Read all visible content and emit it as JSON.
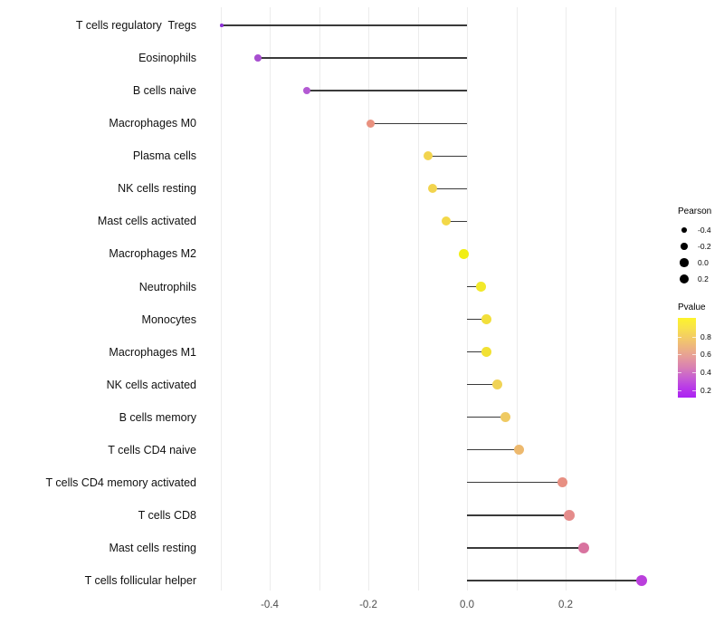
{
  "chart_data": {
    "type": "lollipop",
    "orientation": "horizontal",
    "title": "",
    "xlabel": "",
    "ylabel": "",
    "categories": [
      "T cells regulatory  Tregs",
      "Eosinophils",
      "B cells naive",
      "Macrophages M0",
      "Plasma cells",
      "NK cells resting",
      "Mast cells activated",
      "Macrophages M2",
      "Neutrophils",
      "Monocytes",
      "Macrophages M1",
      "NK cells activated",
      "B cells memory",
      "T cells CD4 naive",
      "T cells CD4 memory activated",
      "T cells CD8",
      "Mast cells resting",
      "T cells follicular helper"
    ],
    "series": [
      {
        "name": "Pearson",
        "values": [
          -0.497,
          -0.424,
          -0.325,
          -0.196,
          -0.079,
          -0.07,
          -0.042,
          -0.006,
          0.028,
          0.039,
          0.039,
          0.061,
          0.077,
          0.105,
          0.193,
          0.207,
          0.237,
          0.354
        ]
      }
    ],
    "point_colors": [
      "#8d2fd6",
      "#a84fd0",
      "#b35ad3",
      "#e9917f",
      "#f2d44e",
      "#f2d44e",
      "#f3d848",
      "#f1ee15",
      "#f2e92a",
      "#f2df3a",
      "#f2e133",
      "#f0d356",
      "#efca62",
      "#edb96e",
      "#e78f82",
      "#e58c8b",
      "#d8739f",
      "#ba3fdc"
    ],
    "point_diameters": [
      3.5,
      7.7,
      8.7,
      9.3,
      10,
      10,
      10.3,
      10.7,
      10.7,
      10.7,
      10.7,
      11,
      11,
      11.3,
      11.3,
      11.7,
      12,
      12.7
    ],
    "baseline": 0,
    "xlim": [
      -0.542,
      0.397
    ],
    "x_ticks": [
      {
        "value": -0.4,
        "label": "-0.4"
      },
      {
        "value": -0.2,
        "label": "-0.2"
      },
      {
        "value": 0.0,
        "label": "0.0"
      },
      {
        "value": 0.2,
        "label": "0.2"
      }
    ],
    "gridline_values": [
      -0.5,
      -0.4,
      -0.3,
      -0.2,
      -0.1,
      0.0,
      0.1,
      0.2,
      0.3
    ],
    "grid_on": true,
    "grid_color": "#ececec",
    "stem_color": "#3a3a3a",
    "legend_position": "right"
  },
  "legend": {
    "size": {
      "title": "Pearson",
      "items": [
        {
          "label": "-0.4",
          "diameter": 5.7
        },
        {
          "label": "-0.2",
          "diameter": 7.7
        },
        {
          "label": "0.0",
          "diameter": 9.3
        },
        {
          "label": "0.2",
          "diameter": 10.7
        }
      ]
    },
    "color": {
      "title": "Pvalue",
      "bar_range": [
        1.01,
        0.118
      ],
      "gradient_top_to_bottom": [
        "#fdf42b",
        "#f8e24b",
        "#f3cb66",
        "#edb381",
        "#e59a9b",
        "#d87fb4",
        "#c75fd2",
        "#b93ae8",
        "#aa22f2"
      ],
      "ticks": [
        {
          "value": 0.8,
          "label": "0.8"
        },
        {
          "value": 0.6,
          "label": "0.6"
        },
        {
          "value": 0.4,
          "label": "0.4"
        },
        {
          "value": 0.2,
          "label": "0.2"
        }
      ]
    }
  }
}
